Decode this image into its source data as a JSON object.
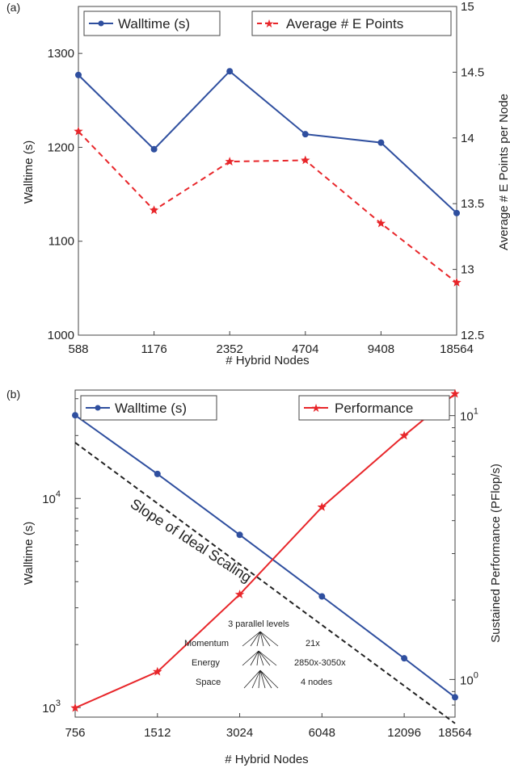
{
  "chart_data": [
    {
      "panel": "(a)",
      "type": "line",
      "xlabel": "# Hybrid Nodes",
      "ylabel": "Walltime (s)",
      "ylabel_right": "Average # E Points per Node",
      "categories": [
        "588",
        "1176",
        "2352",
        "4704",
        "9408",
        "18564"
      ],
      "ylim": [
        1000,
        1350
      ],
      "yticks": [
        "1000",
        "1100",
        "1200",
        "1300"
      ],
      "ylim_right": [
        12.5,
        15
      ],
      "yticks_right": [
        "12.5",
        "13",
        "13.5",
        "14",
        "14.5",
        "15"
      ],
      "legend_placement": "top",
      "series": [
        {
          "name": "Walltime (s)",
          "axis": "left",
          "color": "#2f4f9f",
          "marker": "circle",
          "line": "solid",
          "values": [
            1277,
            1198,
            1281,
            1214,
            1205,
            1130
          ]
        },
        {
          "name": "Average # E Points",
          "axis": "right",
          "color": "#e8262a",
          "marker": "star",
          "line": "dashed",
          "values": [
            14.05,
            13.45,
            13.82,
            13.83,
            13.35,
            12.9
          ]
        }
      ]
    },
    {
      "panel": "(b)",
      "type": "line",
      "xlabel": "# Hybrid Nodes",
      "ylabel": "Walltime (s)",
      "ylabel_right": "Sustained Performance (PFlop/s)",
      "categories": [
        "756",
        "1512",
        "3024",
        "6048",
        "12096",
        "18564"
      ],
      "x_scale": "log",
      "x_values": [
        756,
        1512,
        3024,
        6048,
        12096,
        18564
      ],
      "y_scale": "log",
      "ylim": [
        900,
        33000
      ],
      "yticks": [
        {
          "base": "10",
          "exp": "3"
        },
        {
          "base": "10",
          "exp": "4"
        }
      ],
      "ylim_right": [
        0.72,
        12.5
      ],
      "yticks_right": [
        {
          "base": "10",
          "exp": "0"
        },
        {
          "base": "10",
          "exp": "1"
        }
      ],
      "legend_placement": "top",
      "series": [
        {
          "name": "Walltime (s)",
          "axis": "left",
          "color": "#2f4f9f",
          "marker": "circle",
          "line": "solid",
          "values": [
            25000,
            13100,
            6700,
            3400,
            1720,
            1120
          ]
        },
        {
          "name": "Performance",
          "axis": "right",
          "color": "#e8262a",
          "marker": "star",
          "line": "solid",
          "values": [
            0.78,
            1.07,
            2.1,
            4.5,
            8.4,
            12.1
          ]
        }
      ],
      "ideal_line": {
        "label": "Slope of Ideal Scaling",
        "style": "dashed",
        "color": "#222222",
        "from": [
          756,
          18500
        ],
        "to": [
          18564,
          840
        ]
      },
      "inset": {
        "title": "3 parallel levels",
        "rows": [
          {
            "left": "Momentum",
            "right": "21x"
          },
          {
            "left": "Energy",
            "right": "2850x-3050x"
          },
          {
            "left": "Space",
            "right": "4 nodes"
          }
        ]
      }
    }
  ]
}
